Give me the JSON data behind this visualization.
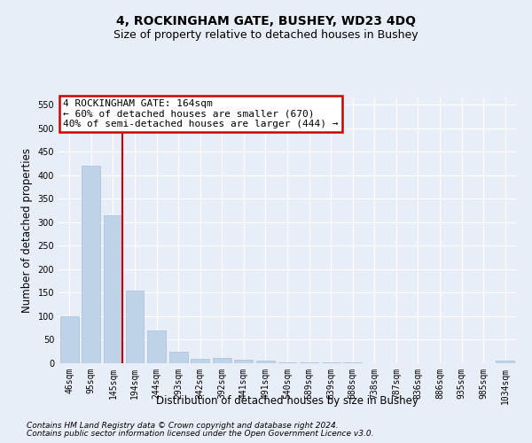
{
  "title": "4, ROCKINGHAM GATE, BUSHEY, WD23 4DQ",
  "subtitle": "Size of property relative to detached houses in Bushey",
  "xlabel": "Distribution of detached houses by size in Bushey",
  "ylabel": "Number of detached properties",
  "footer_line1": "Contains HM Land Registry data © Crown copyright and database right 2024.",
  "footer_line2": "Contains public sector information licensed under the Open Government Licence v3.0.",
  "categories": [
    "46sqm",
    "95sqm",
    "145sqm",
    "194sqm",
    "244sqm",
    "293sqm",
    "342sqm",
    "392sqm",
    "441sqm",
    "491sqm",
    "540sqm",
    "589sqm",
    "639sqm",
    "688sqm",
    "738sqm",
    "787sqm",
    "836sqm",
    "886sqm",
    "935sqm",
    "985sqm",
    "1034sqm"
  ],
  "bar_values": [
    100,
    420,
    315,
    155,
    70,
    25,
    10,
    12,
    8,
    5,
    2,
    2,
    2,
    2,
    0,
    0,
    0,
    0,
    0,
    0,
    5
  ],
  "bar_color": "#bed3e8",
  "bar_edge_color": "#a8c0d8",
  "red_line_index": 2,
  "red_line_label": "4 ROCKINGHAM GATE: 164sqm",
  "annotation_line2": "← 60% of detached houses are smaller (670)",
  "annotation_line3": "40% of semi-detached houses are larger (444) →",
  "annotation_box_facecolor": "#ffffff",
  "annotation_box_edgecolor": "#cc0000",
  "red_line_color": "#cc0000",
  "ylim": [
    0,
    565
  ],
  "yticks": [
    0,
    50,
    100,
    150,
    200,
    250,
    300,
    350,
    400,
    450,
    500,
    550
  ],
  "background_color": "#e8eef8",
  "grid_color": "#ffffff",
  "title_fontsize": 10,
  "subtitle_fontsize": 9,
  "axis_label_fontsize": 8.5,
  "tick_fontsize": 7,
  "annotation_fontsize": 8,
  "footer_fontsize": 6.5
}
